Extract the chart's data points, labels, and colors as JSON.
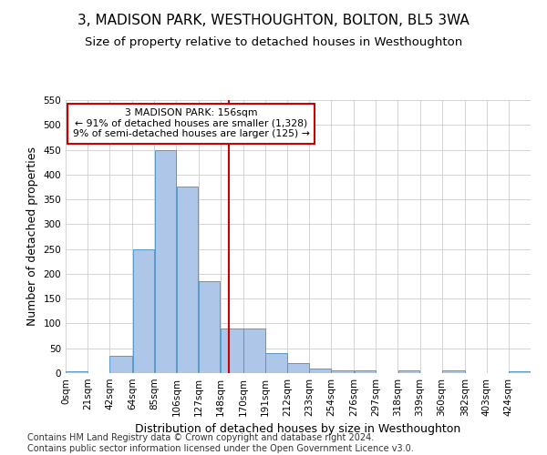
{
  "title": "3, MADISON PARK, WESTHOUGHTON, BOLTON, BL5 3WA",
  "subtitle": "Size of property relative to detached houses in Westhoughton",
  "xlabel": "Distribution of detached houses by size in Westhoughton",
  "ylabel": "Number of detached properties",
  "bin_edges": [
    0,
    21,
    42,
    64,
    85,
    106,
    127,
    148,
    170,
    191,
    212,
    233,
    254,
    276,
    297,
    318,
    339,
    360,
    382,
    403,
    424,
    445
  ],
  "bar_heights": [
    3,
    0,
    35,
    250,
    450,
    375,
    185,
    90,
    90,
    40,
    20,
    10,
    5,
    5,
    0,
    5,
    0,
    5,
    0,
    0,
    3
  ],
  "bar_color": "#aec6e8",
  "bar_edge_color": "#5599cc",
  "property_size": 156,
  "red_line_color": "#cc0000",
  "annotation_text": "3 MADISON PARK: 156sqm\n← 91% of detached houses are smaller (1,328)\n9% of semi-detached houses are larger (125) →",
  "annotation_box_color": "#ffffff",
  "annotation_box_edge": "#cc0000",
  "ylim": [
    0,
    550
  ],
  "yticks": [
    0,
    50,
    100,
    150,
    200,
    250,
    300,
    350,
    400,
    450,
    500,
    550
  ],
  "tick_labels": [
    "0sqm",
    "21sqm",
    "42sqm",
    "64sqm",
    "85sqm",
    "106sqm",
    "127sqm",
    "148sqm",
    "170sqm",
    "191sqm",
    "212sqm",
    "233sqm",
    "254sqm",
    "276sqm",
    "297sqm",
    "318sqm",
    "339sqm",
    "360sqm",
    "382sqm",
    "403sqm",
    "424sqm"
  ],
  "footer_text": "Contains HM Land Registry data © Crown copyright and database right 2024.\nContains public sector information licensed under the Open Government Licence v3.0.",
  "background_color": "#ffffff",
  "grid_color": "#cccccc",
  "title_fontsize": 11,
  "subtitle_fontsize": 9.5,
  "axis_label_fontsize": 9,
  "tick_fontsize": 7.5,
  "footer_fontsize": 7
}
